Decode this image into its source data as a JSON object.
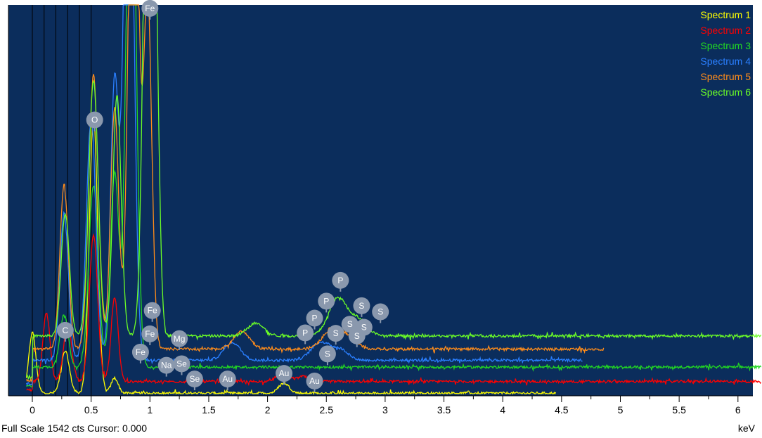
{
  "status_bar": {
    "full_scale_label": "Full Scale 1542 cts Cursor: 0.000",
    "unit": "keV"
  },
  "colors": {
    "background": "#0b2d5c",
    "axis": "#000000",
    "marker_line": "#000000",
    "label_bubble": "#8a98ad",
    "label_text": "#ffffff"
  },
  "chart_data": {
    "type": "line",
    "title": "",
    "xlabel": "keV",
    "ylabel": "",
    "xlim": [
      -0.15,
      6.2
    ],
    "ylim": [
      0,
      1542
    ],
    "full_scale_cts": 1542,
    "cursor": 0.0,
    "x_ticks": [
      0,
      0.5,
      1,
      1.5,
      2,
      2.5,
      3,
      3.5,
      4,
      4.5,
      5,
      5.5,
      6
    ],
    "x_tick_labels": [
      "0",
      "0.5",
      "1",
      "1.5",
      "2",
      "2.5",
      "3",
      "3.5",
      "4",
      "4.5",
      "5",
      "5.5",
      "6"
    ],
    "marker_lines_kev": [
      0.0,
      0.1,
      0.2,
      0.3,
      0.4,
      0.5
    ],
    "legend_position": "top-right",
    "series": [
      {
        "name": "Spectrum 1",
        "color": "#ffff00",
        "baseline": 2,
        "x_end": 4.45,
        "peaks": [
          [
            0.0,
            240,
            0.03
          ],
          [
            0.28,
            165,
            0.035
          ],
          [
            0.52,
            1100,
            0.035
          ],
          [
            0.7,
            60,
            0.03
          ],
          [
            2.14,
            40,
            0.045
          ]
        ]
      },
      {
        "name": "Spectrum 2",
        "color": "#ff0000",
        "baseline": 48,
        "x_end": 6.2,
        "peaks": [
          [
            0.12,
            270,
            0.03
          ],
          [
            0.3,
            220,
            0.035
          ],
          [
            0.52,
            580,
            0.035
          ],
          [
            0.7,
            330,
            0.03
          ],
          [
            2.13,
            50,
            0.045
          ],
          [
            2.3,
            20,
            0.05
          ]
        ]
      },
      {
        "name": "Spectrum 3",
        "color": "#22d922",
        "baseline": 105,
        "x_end": 6.2,
        "peaks": [
          [
            0.27,
            210,
            0.035
          ],
          [
            0.52,
            720,
            0.04
          ],
          [
            0.7,
            770,
            0.035
          ],
          [
            0.84,
            2400,
            0.04
          ]
        ]
      },
      {
        "name": "Spectrum 4",
        "color": "#2a7fff",
        "baseline": 132,
        "x_end": 4.68,
        "peaks": [
          [
            0.27,
            580,
            0.035
          ],
          [
            0.5,
            960,
            0.04
          ],
          [
            0.7,
            1100,
            0.035
          ],
          [
            0.82,
            2600,
            0.04
          ],
          [
            1.7,
            70,
            0.07
          ],
          [
            2.45,
            70,
            0.08
          ],
          [
            2.62,
            40,
            0.07
          ]
        ]
      },
      {
        "name": "Spectrum 5",
        "color": "#ff8c1a",
        "baseline": 176,
        "x_end": 4.86,
        "peaks": [
          [
            0.27,
            650,
            0.035
          ],
          [
            0.52,
            1080,
            0.04
          ],
          [
            0.7,
            950,
            0.035
          ],
          [
            0.86,
            2500,
            0.04
          ],
          [
            0.98,
            1400,
            0.035
          ],
          [
            1.78,
            70,
            0.07
          ],
          [
            2.55,
            80,
            0.08
          ],
          [
            2.7,
            40,
            0.07
          ]
        ]
      },
      {
        "name": "Spectrum 6",
        "color": "#6cff26",
        "baseline": 228,
        "x_end": 6.2,
        "peaks": [
          [
            0.28,
            480,
            0.035
          ],
          [
            0.52,
            1010,
            0.04
          ],
          [
            0.72,
            950,
            0.035
          ],
          [
            0.99,
            2700,
            0.04
          ],
          [
            1.05,
            800,
            0.03
          ],
          [
            1.9,
            50,
            0.07
          ],
          [
            2.6,
            150,
            0.08
          ],
          [
            2.78,
            60,
            0.07
          ]
        ]
      }
    ],
    "annotations": [
      {
        "text": "Fe",
        "x": 1.0,
        "y": 1520
      },
      {
        "text": "O",
        "x": 0.53,
        "y": 1080
      },
      {
        "text": "C",
        "x": 0.28,
        "y": 250
      },
      {
        "text": "Fe",
        "x": 1.02,
        "y": 328
      },
      {
        "text": "Fe",
        "x": 1.0,
        "y": 236
      },
      {
        "text": "Fe",
        "x": 0.92,
        "y": 164
      },
      {
        "text": "Mg",
        "x": 1.25,
        "y": 217
      },
      {
        "text": "Na",
        "x": 1.14,
        "y": 112
      },
      {
        "text": "Se",
        "x": 1.27,
        "y": 118
      },
      {
        "text": "Se",
        "x": 1.38,
        "y": 58
      },
      {
        "text": "Au",
        "x": 1.66,
        "y": 58
      },
      {
        "text": "Au",
        "x": 2.14,
        "y": 80
      },
      {
        "text": "Au",
        "x": 2.4,
        "y": 50
      },
      {
        "text": "P",
        "x": 2.62,
        "y": 447
      },
      {
        "text": "P",
        "x": 2.5,
        "y": 365
      },
      {
        "text": "P",
        "x": 2.4,
        "y": 298
      },
      {
        "text": "P",
        "x": 2.32,
        "y": 240
      },
      {
        "text": "S",
        "x": 2.8,
        "y": 347
      },
      {
        "text": "S",
        "x": 2.96,
        "y": 323
      },
      {
        "text": "S",
        "x": 2.7,
        "y": 274
      },
      {
        "text": "S",
        "x": 2.82,
        "y": 262
      },
      {
        "text": "S",
        "x": 2.58,
        "y": 238
      },
      {
        "text": "S",
        "x": 2.76,
        "y": 228
      },
      {
        "text": "S",
        "x": 2.51,
        "y": 157
      }
    ]
  }
}
